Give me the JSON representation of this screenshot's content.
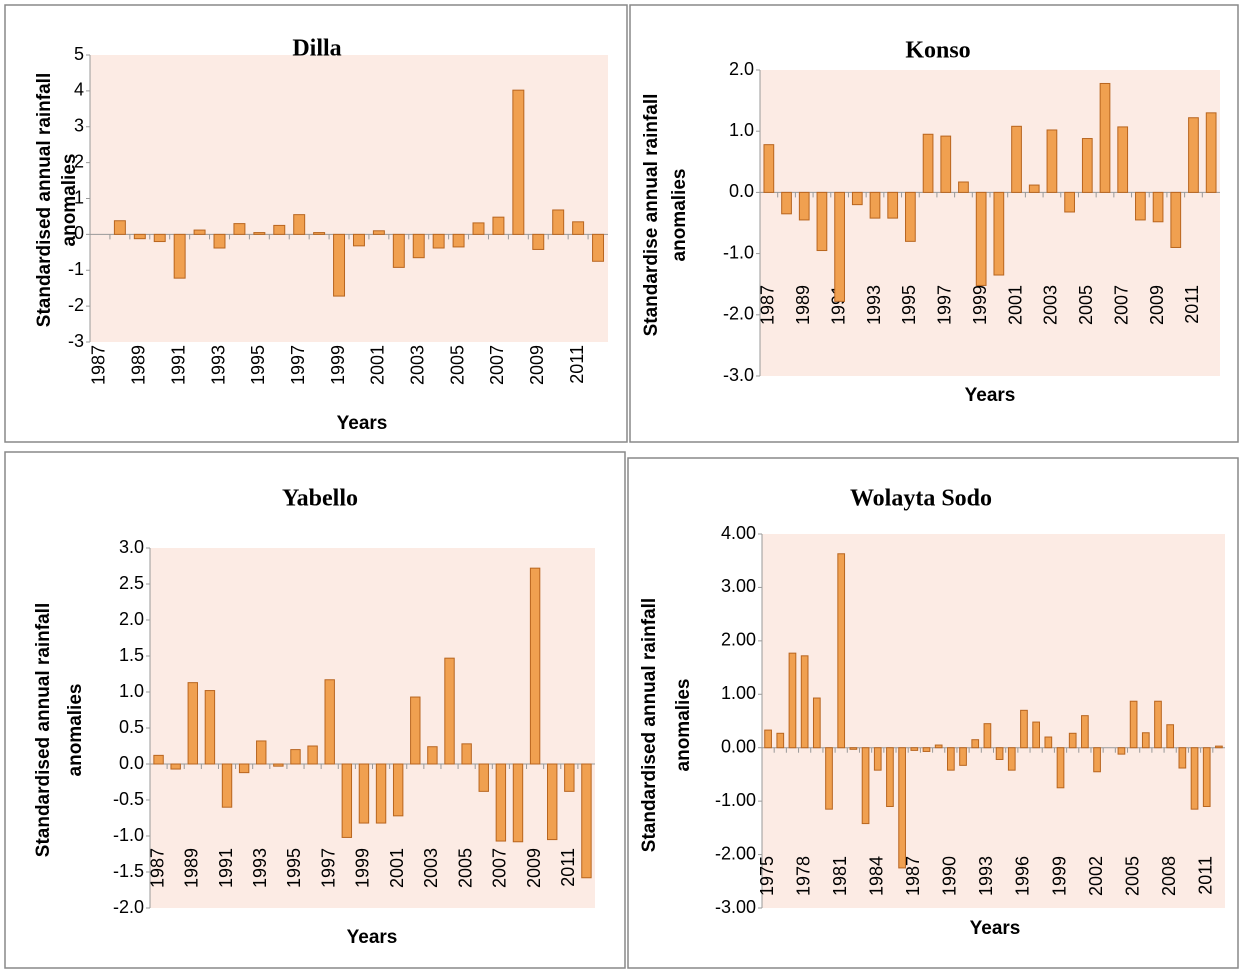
{
  "chart_data": [
    {
      "type": "bar",
      "title": "Dilla",
      "ylabel": [
        "Standardised annual rainfall",
        "anomalies"
      ],
      "xlabel": "Years",
      "categories": [
        "1987",
        null,
        "1989",
        null,
        "1991",
        null,
        "1993",
        null,
        "1995",
        null,
        "1997",
        null,
        "1999",
        null,
        "2001",
        null,
        "2003",
        null,
        "2005",
        null,
        "2007",
        null,
        "2009",
        null,
        "2011",
        null
      ],
      "values": [
        null,
        0.38,
        -0.12,
        -0.2,
        -1.22,
        0.12,
        -0.38,
        0.3,
        0.05,
        0.25,
        0.55,
        0.05,
        -1.72,
        -0.32,
        0.1,
        -0.92,
        -0.65,
        -0.38,
        -0.35,
        0.32,
        0.48,
        4.02,
        -0.42,
        0.68,
        0.35,
        -0.75
      ],
      "color": "#f0a050",
      "ylim": [
        -3,
        5
      ],
      "yticks": [
        -3,
        -2,
        -1,
        0,
        1,
        2,
        3,
        4,
        5
      ]
    },
    {
      "type": "bar",
      "title": "Konso",
      "ylabel": [
        "Standardise annual rainfall",
        "anomalies"
      ],
      "xlabel": "Years",
      "categories": [
        "1987",
        null,
        "1989",
        null,
        "1991",
        null,
        "1993",
        null,
        "1995",
        null,
        "1997",
        null,
        "1999",
        null,
        "2001",
        null,
        "2003",
        null,
        "2005",
        null,
        "2007",
        null,
        "2009",
        null,
        "2011",
        null
      ],
      "values": [
        0.78,
        -0.35,
        -0.45,
        -0.95,
        -1.78,
        -0.2,
        -0.42,
        -0.42,
        -0.8,
        0.95,
        0.92,
        0.17,
        -1.52,
        -1.35,
        1.08,
        0.12,
        1.02,
        -0.32,
        0.88,
        1.78,
        1.07,
        -0.45,
        -0.48,
        -0.9,
        1.22,
        1.3
      ],
      "color": "#f0a050",
      "ylim": [
        -3,
        2
      ],
      "yticks": [
        {
          "value": -3,
          "label": "-3.0"
        },
        {
          "value": -2,
          "label": "-2.0"
        },
        {
          "value": -1,
          "label": "-1.0"
        },
        {
          "value": 0,
          "label": "0.0"
        },
        {
          "value": 1,
          "label": "1.0"
        },
        {
          "value": 2,
          "label": "2.0"
        }
      ]
    },
    {
      "type": "bar",
      "title": "Yabello",
      "ylabel": [
        "Standardised annual rainfall",
        "anomalies"
      ],
      "xlabel": "Years",
      "categories": [
        "1987",
        null,
        "1989",
        null,
        "1991",
        null,
        "1993",
        null,
        "1995",
        null,
        "1997",
        null,
        "1999",
        null,
        "2001",
        null,
        "2003",
        null,
        "2005",
        null,
        "2007",
        null,
        "2009",
        null,
        "2011",
        null
      ],
      "values": [
        0.12,
        -0.07,
        1.13,
        1.02,
        -0.6,
        -0.12,
        0.32,
        -0.03,
        0.2,
        0.25,
        1.17,
        -1.02,
        -0.82,
        -0.82,
        -0.72,
        0.93,
        0.24,
        1.47,
        0.28,
        -0.38,
        -1.07,
        -1.08,
        2.72,
        -1.05,
        -0.38,
        -1.58
      ],
      "color": "#f0a050",
      "ylim": [
        -2,
        3
      ],
      "yticks": [
        {
          "value": -2,
          "label": "-2.0"
        },
        {
          "value": -1.5,
          "label": "-1.5"
        },
        {
          "value": -1,
          "label": "-1.0"
        },
        {
          "value": -0.5,
          "label": "-0.5"
        },
        {
          "value": 0,
          "label": "0.0"
        },
        {
          "value": 0.5,
          "label": "0.5"
        },
        {
          "value": 1,
          "label": "1.0"
        },
        {
          "value": 1.5,
          "label": "1.5"
        },
        {
          "value": 2,
          "label": "2.0"
        },
        {
          "value": 2.5,
          "label": "2.5"
        },
        {
          "value": 3,
          "label": "3.0"
        }
      ]
    },
    {
      "type": "bar",
      "title": "Wolayta Sodo",
      "ylabel": [
        "Standardised annual rainfall",
        "anomalies"
      ],
      "xlabel": "Years",
      "categories": [
        "1975",
        null,
        null,
        "1978",
        null,
        null,
        "1981",
        null,
        null,
        "1984",
        null,
        null,
        "1987",
        null,
        null,
        "1990",
        null,
        null,
        "1993",
        null,
        null,
        "1996",
        null,
        null,
        "1999",
        null,
        null,
        "2002",
        null,
        null,
        "2005",
        null,
        null,
        "2008",
        null,
        null,
        "2011",
        null
      ],
      "values": [
        0.33,
        0.27,
        1.77,
        1.72,
        0.93,
        -1.15,
        3.63,
        -0.03,
        -1.42,
        -0.42,
        -1.1,
        -2.25,
        -0.05,
        -0.07,
        0.05,
        -0.42,
        -0.33,
        0.15,
        0.45,
        -0.22,
        -0.42,
        0.7,
        0.48,
        0.2,
        -0.75,
        0.27,
        0.6,
        -0.45,
        0.0,
        -0.12,
        0.87,
        0.28,
        0.87,
        0.43,
        -0.38,
        -1.15,
        -1.1,
        0.03
      ],
      "color": "#f0a050",
      "ylim": [
        -3,
        4
      ],
      "yticks": [
        {
          "value": -3,
          "label": "-3.00"
        },
        {
          "value": -2,
          "label": "-2.00"
        },
        {
          "value": -1,
          "label": "-1.00"
        },
        {
          "value": 0,
          "label": "0.00"
        },
        {
          "value": 1,
          "label": "1.00"
        },
        {
          "value": 2,
          "label": "2.00"
        },
        {
          "value": 3,
          "label": "3.00"
        },
        {
          "value": 4,
          "label": "4.00"
        }
      ]
    }
  ]
}
